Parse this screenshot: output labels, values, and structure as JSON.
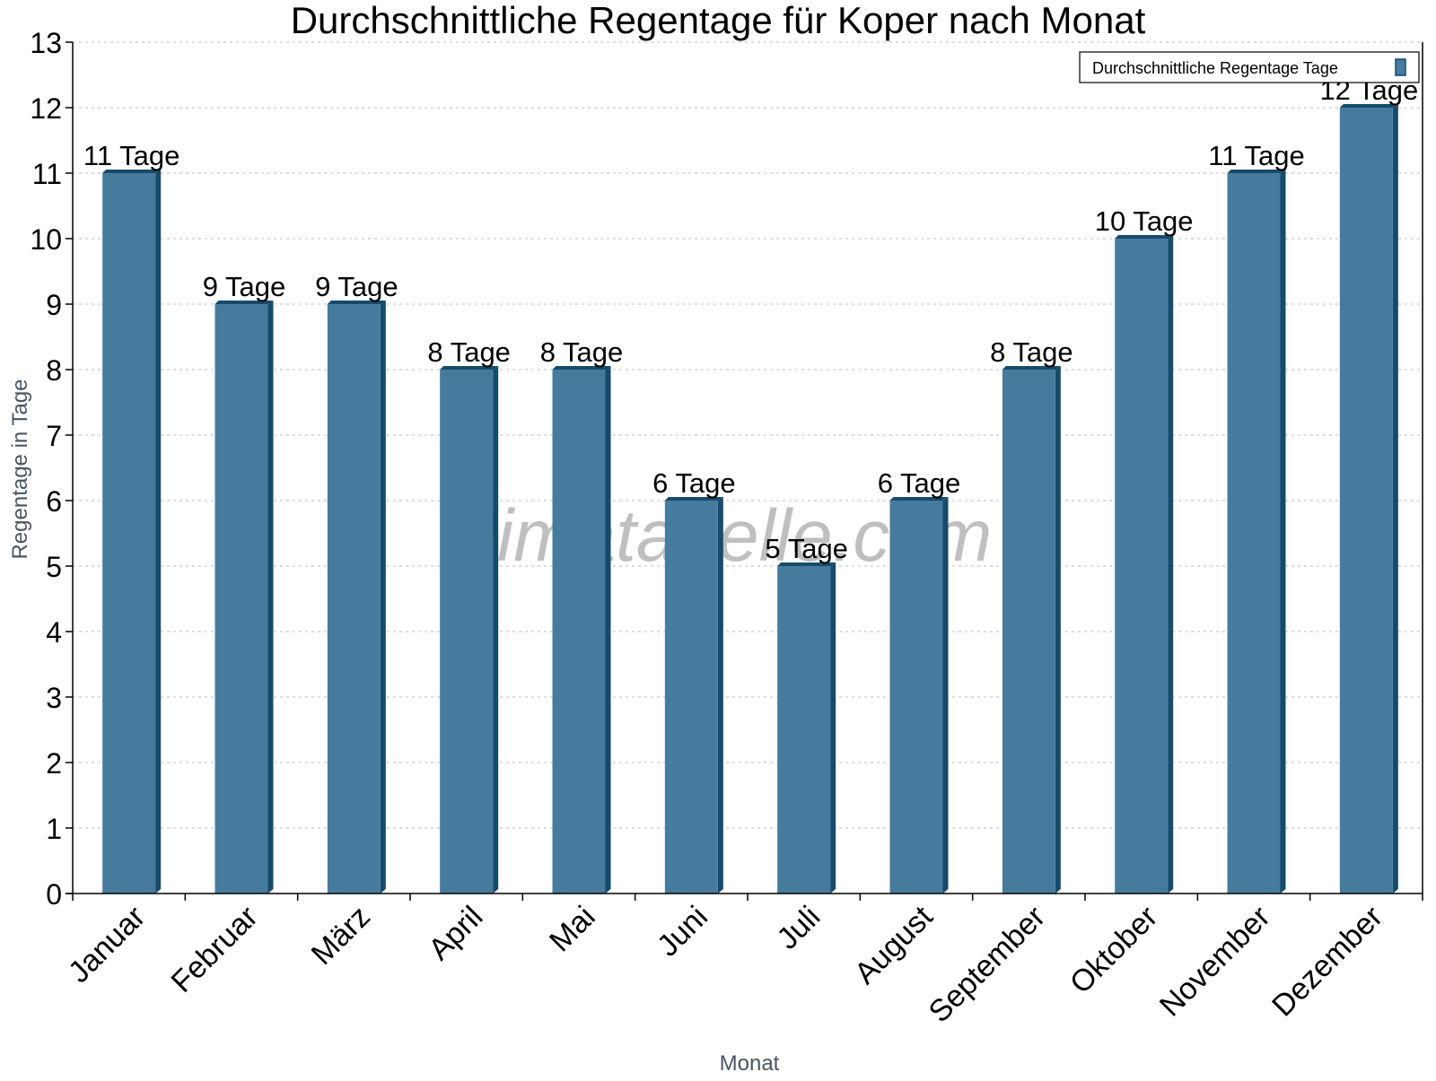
{
  "chart_data": {
    "type": "bar",
    "title": "Durchschnittliche Regentage für Koper nach Monat",
    "xlabel": "Monat",
    "ylabel": "Regentage in Tage",
    "categories": [
      "Januar",
      "Februar",
      "März",
      "April",
      "Mai",
      "Juni",
      "Juli",
      "August",
      "September",
      "Oktober",
      "November",
      "Dezember"
    ],
    "series": [
      {
        "name": "Durchschnittliche Regentage Tage",
        "values": [
          11,
          9,
          9,
          8,
          8,
          6,
          5,
          6,
          8,
          10,
          11,
          12
        ]
      }
    ],
    "data_label_suffix": " Tage",
    "ylim": [
      0,
      13
    ],
    "yticks": [
      0,
      1,
      2,
      3,
      4,
      5,
      6,
      7,
      8,
      9,
      10,
      11,
      12,
      13
    ],
    "grid": true,
    "legend_position": "top-right",
    "watermark": "klimatabelle.com",
    "colors": {
      "bar": "#467b9e",
      "bar_side": "#174a6b"
    }
  }
}
